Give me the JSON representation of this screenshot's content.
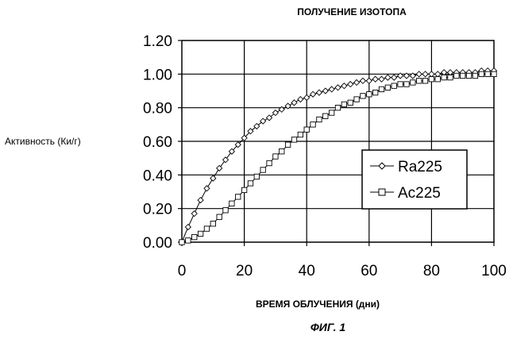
{
  "chart_data": {
    "type": "line",
    "title": "ПОЛУЧЕНИЕ ИЗОТОПА",
    "xlabel": "ВРЕМЯ  ОБЛУЧЕНИЯ (дни)",
    "ylabel": "Активность (Ки/г)",
    "caption": "ФИГ. 1",
    "xlim": [
      0,
      100
    ],
    "ylim": [
      0,
      1.2
    ],
    "x_ticks": [
      "0",
      "20",
      "40",
      "60",
      "80",
      "100"
    ],
    "y_ticks": [
      "0.00",
      "0.20",
      "0.40",
      "0.60",
      "0.80",
      "1.00",
      "1.20"
    ],
    "grid": true,
    "legend_position": "right-middle",
    "x": [
      0,
      2,
      4,
      6,
      8,
      10,
      12,
      14,
      16,
      18,
      20,
      22,
      24,
      26,
      28,
      30,
      32,
      34,
      36,
      38,
      40,
      42,
      44,
      46,
      48,
      50,
      52,
      54,
      56,
      58,
      60,
      62,
      64,
      66,
      68,
      70,
      72,
      74,
      76,
      78,
      80,
      82,
      84,
      86,
      88,
      90,
      92,
      94,
      96,
      98,
      100
    ],
    "series": [
      {
        "name": "Ra225",
        "marker": "diamond",
        "values": [
          0.0,
          0.09,
          0.17,
          0.25,
          0.32,
          0.38,
          0.44,
          0.49,
          0.54,
          0.58,
          0.62,
          0.66,
          0.69,
          0.72,
          0.74,
          0.77,
          0.79,
          0.81,
          0.83,
          0.85,
          0.86,
          0.88,
          0.89,
          0.9,
          0.91,
          0.92,
          0.93,
          0.94,
          0.95,
          0.96,
          0.96,
          0.97,
          0.97,
          0.98,
          0.98,
          0.99,
          0.99,
          0.99,
          1.0,
          1.0,
          1.0,
          1.0,
          1.01,
          1.01,
          1.01,
          1.01,
          1.01,
          1.01,
          1.02,
          1.02,
          1.02
        ]
      },
      {
        "name": "Ac225",
        "marker": "square",
        "values": [
          0.0,
          0.01,
          0.03,
          0.05,
          0.08,
          0.11,
          0.15,
          0.19,
          0.23,
          0.27,
          0.31,
          0.35,
          0.39,
          0.43,
          0.47,
          0.51,
          0.54,
          0.58,
          0.61,
          0.64,
          0.67,
          0.7,
          0.73,
          0.75,
          0.77,
          0.8,
          0.82,
          0.83,
          0.85,
          0.87,
          0.88,
          0.89,
          0.91,
          0.92,
          0.93,
          0.94,
          0.94,
          0.95,
          0.96,
          0.96,
          0.97,
          0.97,
          0.98,
          0.98,
          0.99,
          0.99,
          0.99,
          0.99,
          1.0,
          1.0,
          1.0
        ]
      }
    ]
  }
}
